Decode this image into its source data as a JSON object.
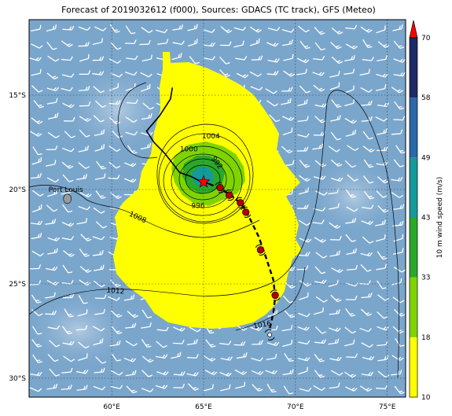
{
  "title": "Forecast of 2019032612 (f000), Sources: GDACS (TC track), GFS (Meteo)",
  "map": {
    "lon_range": [
      55.5,
      76
    ],
    "lat_range": [
      -31,
      -11
    ],
    "lon_ticks": [
      {
        "value": 60,
        "label": "60°E"
      },
      {
        "value": 65,
        "label": "65°E"
      },
      {
        "value": 70,
        "label": "70°E"
      },
      {
        "value": 75,
        "label": "75°E"
      }
    ],
    "lat_ticks": [
      {
        "value": -15,
        "label": "15°S"
      },
      {
        "value": -20,
        "label": "20°S"
      },
      {
        "value": -25,
        "label": "25°S"
      },
      {
        "value": -30,
        "label": "30°S"
      }
    ],
    "ocean_color": "#7aa6cc",
    "gridlines": true
  },
  "places": [
    {
      "name": "Port Louis",
      "lon": 57.5,
      "lat": -20.2
    }
  ],
  "isobars": [
    {
      "value": "1004",
      "lon": 65.4,
      "lat": -17.2
    },
    {
      "value": "1000",
      "lon": 64.2,
      "lat": -17.9
    },
    {
      "value": "996",
      "lon": 64.7,
      "lat": -20.9
    },
    {
      "value": "992",
      "lon": 65.7,
      "lat": -18.6
    },
    {
      "value": "1008",
      "lon": 61.4,
      "lat": -21.5
    },
    {
      "value": "1012",
      "lon": 60.2,
      "lat": -25.4
    },
    {
      "value": "1016",
      "lon": 68.2,
      "lat": -27.2
    }
  ],
  "track_observed": [
    [
      63.3,
      -14.6
    ],
    [
      63.2,
      -15.2
    ],
    [
      62.6,
      -16.1
    ],
    [
      61.9,
      -16.9
    ],
    [
      62.3,
      -17.5
    ],
    [
      62.9,
      -18.1
    ],
    [
      63.3,
      -18.6
    ],
    [
      63.7,
      -19.1
    ],
    [
      64.3,
      -19.3
    ],
    [
      64.9,
      -19.6
    ],
    [
      65.3,
      -19.7
    ]
  ],
  "track_forecast": [
    [
      65.3,
      -19.7
    ],
    [
      65.8,
      -19.9
    ],
    [
      66.5,
      -20.3
    ],
    [
      67.1,
      -20.8
    ],
    [
      67.5,
      -21.5
    ],
    [
      68.0,
      -22.5
    ],
    [
      68.4,
      -23.6
    ],
    [
      68.8,
      -24.8
    ],
    [
      68.9,
      -25.7
    ],
    [
      68.8,
      -26.5
    ],
    [
      68.6,
      -27.4
    ]
  ],
  "forecast_points": [
    {
      "lon": 65.9,
      "lat": -19.9
    },
    {
      "lon": 66.4,
      "lat": -20.3
    },
    {
      "lon": 67.0,
      "lat": -20.7
    },
    {
      "lon": 67.3,
      "lat": -21.2
    },
    {
      "lon": 68.1,
      "lat": -23.2
    },
    {
      "lon": 68.9,
      "lat": -25.6
    },
    {
      "lon": 68.6,
      "lat": -27.7
    }
  ],
  "storm_center": {
    "lon": 65.0,
    "lat": -19.6
  },
  "colorbar": {
    "label": "10 m wind speed (m/s)",
    "bands": [
      {
        "from": 10,
        "to": 18,
        "color": "#ffff00"
      },
      {
        "from": 18,
        "to": 33,
        "color": "#7fd400"
      },
      {
        "from": 33,
        "to": 43,
        "color": "#2aa82a"
      },
      {
        "from": 43,
        "to": 49,
        "color": "#149a9a"
      },
      {
        "from": 49,
        "to": 58,
        "color": "#2a68a8"
      },
      {
        "from": 58,
        "to": 70,
        "color": "#1d2a66"
      }
    ],
    "ticks": [
      "10",
      "18",
      "33",
      "43",
      "49",
      "58",
      "70"
    ],
    "extend_color": "#ff0000"
  }
}
